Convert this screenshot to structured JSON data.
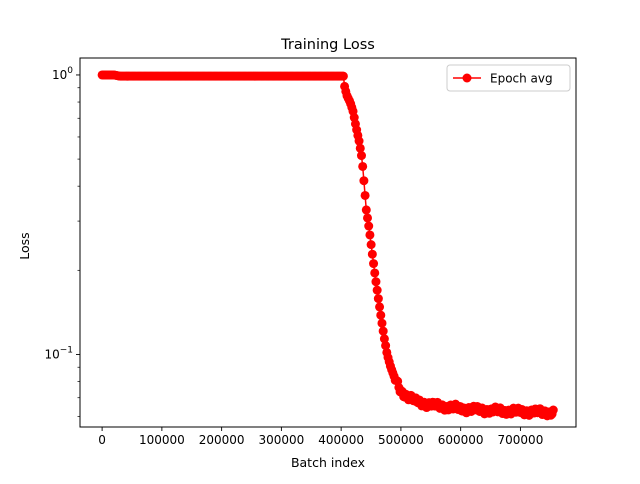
{
  "chart_data": {
    "type": "line",
    "title": "Training Loss",
    "xlabel": "Batch index",
    "ylabel": "Loss",
    "yscale": "log",
    "xlim": [
      -37000,
      793000
    ],
    "ylim": [
      0.055,
      1.15
    ],
    "xticks": [
      0,
      100000,
      200000,
      300000,
      400000,
      500000,
      600000,
      700000
    ],
    "xtick_labels": [
      "0",
      "100000",
      "200000",
      "300000",
      "400000",
      "500000",
      "600000",
      "700000"
    ],
    "yticks": [
      {
        "value": 1,
        "base": "10",
        "exp": "0"
      },
      {
        "value": 0.1,
        "base": "10",
        "exp": "−1"
      }
    ],
    "legend": {
      "position": "top-right"
    },
    "series": [
      {
        "name": "Epoch avg",
        "color": "#ff0000",
        "marker": "circle",
        "x_start": 0,
        "x_end": 755000,
        "n_points": 375,
        "knots": [
          [
            0,
            1.0
          ],
          [
            20000,
            1.0
          ],
          [
            30000,
            0.99
          ],
          [
            400000,
            0.99
          ],
          [
            404000,
            0.99
          ],
          [
            406000,
            0.9
          ],
          [
            410000,
            0.84
          ],
          [
            415000,
            0.8
          ],
          [
            420000,
            0.74
          ],
          [
            425000,
            0.65
          ],
          [
            430000,
            0.58
          ],
          [
            435000,
            0.5
          ],
          [
            438000,
            0.42
          ],
          [
            442000,
            0.33
          ],
          [
            447000,
            0.28
          ],
          [
            452000,
            0.23
          ],
          [
            457000,
            0.19
          ],
          [
            462000,
            0.16
          ],
          [
            467000,
            0.135
          ],
          [
            472000,
            0.115
          ],
          [
            477000,
            0.1
          ],
          [
            483000,
            0.09
          ],
          [
            490000,
            0.082
          ],
          [
            500000,
            0.074
          ],
          [
            510000,
            0.071
          ],
          [
            525000,
            0.068
          ],
          [
            550000,
            0.066
          ],
          [
            600000,
            0.064
          ],
          [
            650000,
            0.063
          ],
          [
            700000,
            0.0625
          ],
          [
            755000,
            0.062
          ]
        ]
      }
    ]
  }
}
